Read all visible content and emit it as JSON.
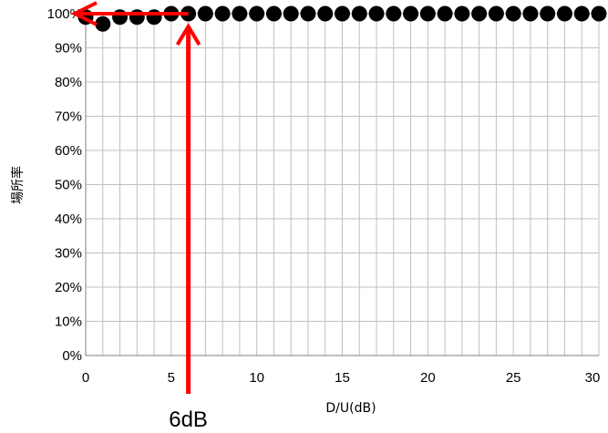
{
  "chart_data": {
    "type": "scatter",
    "title": "",
    "xlabel": "D/U(dB)",
    "ylabel": "場所率",
    "xlim": [
      0,
      30
    ],
    "ylim": [
      0,
      100
    ],
    "x_ticks": [
      "0",
      "5",
      "10",
      "15",
      "20",
      "25",
      "30"
    ],
    "y_ticks": [
      "0%",
      "10%",
      "20%",
      "30%",
      "40%",
      "50%",
      "60%",
      "70%",
      "80%",
      "90%",
      "100%"
    ],
    "grid": true,
    "series": [
      {
        "x": [
          0,
          1,
          2,
          3,
          4,
          5,
          6,
          7,
          8,
          9,
          10,
          11,
          12,
          13,
          14,
          15,
          16,
          17,
          18,
          19,
          20,
          21,
          22,
          23,
          24,
          25,
          26,
          27,
          28,
          29,
          30
        ],
        "y": [
          99,
          97,
          99,
          99,
          99,
          100,
          100,
          100,
          100,
          100,
          100,
          100,
          100,
          100,
          100,
          100,
          100,
          100,
          100,
          100,
          100,
          100,
          100,
          100,
          100,
          100,
          100,
          100,
          100,
          100,
          100
        ]
      }
    ],
    "annotation": {
      "text": "6dB",
      "x": 6,
      "y": 100,
      "color": "#ff0000"
    },
    "marker_color": "#000000",
    "grid_color": "#c0c0c0"
  }
}
